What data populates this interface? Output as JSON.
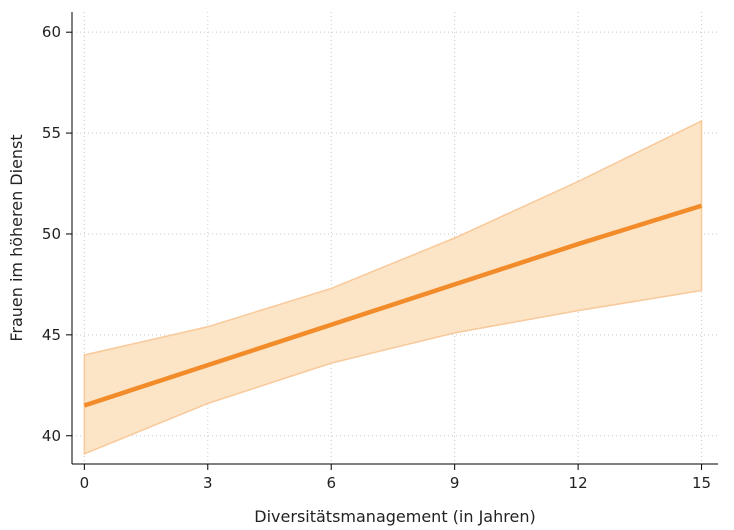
{
  "chart_data": {
    "type": "line",
    "title": "",
    "xlabel": "Diversitätsmanagement (in Jahren)",
    "ylabel": "Frauen im höheren Dienst",
    "xlim": [
      -0.3,
      15.4
    ],
    "ylim": [
      38.6,
      61.0
    ],
    "xticks": [
      0,
      3,
      6,
      9,
      12,
      15
    ],
    "yticks": [
      40,
      45,
      50,
      55,
      60
    ],
    "grid": true,
    "colors": {
      "line": "#f28c2a",
      "band_fill": "#fce4c6",
      "band_edge": "#f8c99a"
    },
    "series": [
      {
        "x": [
          0,
          3,
          6,
          9,
          12,
          15
        ],
        "y": [
          41.5,
          43.5,
          45.5,
          47.5,
          49.5,
          51.4
        ],
        "lower": [
          39.1,
          41.6,
          43.6,
          45.1,
          46.2,
          47.2
        ],
        "upper": [
          44.0,
          45.4,
          47.3,
          49.8,
          52.6,
          55.6
        ]
      }
    ]
  }
}
